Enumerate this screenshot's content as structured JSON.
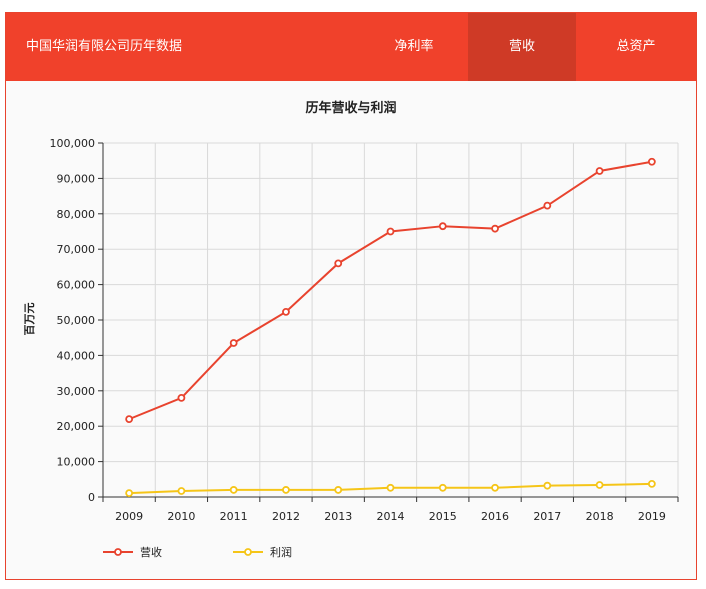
{
  "header": {
    "brand": "中国华润有限公司历年数据",
    "tabs": [
      {
        "label": "净利率",
        "active": false
      },
      {
        "label": "营收",
        "active": true
      },
      {
        "label": "总资产",
        "active": false
      }
    ]
  },
  "colors": {
    "accent": "#f0412b",
    "active_tab": "#cf3a26",
    "revenue": "#e8432e",
    "profit": "#f5c518"
  },
  "chart_data": {
    "type": "line",
    "title": "历年营收与利润",
    "ylabel": "百万元",
    "xlabel": "",
    "ylim": [
      0,
      100000
    ],
    "yticks": [
      "0",
      "10,000",
      "20,000",
      "30,000",
      "40,000",
      "50,000",
      "60,000",
      "70,000",
      "80,000",
      "90,000",
      "100,000"
    ],
    "categories": [
      "2009",
      "2010",
      "2011",
      "2012",
      "2013",
      "2014",
      "2015",
      "2016",
      "2017",
      "2018",
      "2019"
    ],
    "grid": true,
    "legend_position": "bottom-left",
    "series": [
      {
        "name": "营收",
        "color": "#e8432e",
        "values": [
          22000,
          28000,
          43500,
          52300,
          66000,
          75000,
          76500,
          75800,
          82300,
          92100,
          94700
        ]
      },
      {
        "name": "利润",
        "color": "#f5c518",
        "values": [
          1100,
          1700,
          2000,
          2000,
          2000,
          2600,
          2600,
          2600,
          3200,
          3400,
          3700
        ]
      }
    ]
  }
}
